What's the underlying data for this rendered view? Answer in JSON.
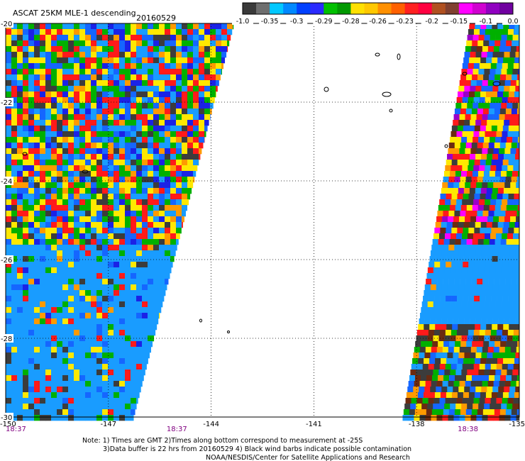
{
  "title": "ASCAT 25KM MLE-1 descending",
  "date": "20160529",
  "colorbar": {
    "labels": [
      "-1.0",
      "-0.35",
      "-0.3",
      "-0.29",
      "-0.28",
      "-0.26",
      "-0.23",
      "-0.2",
      "-0.15",
      "-0.1",
      "0.0"
    ],
    "colors": [
      "#3a3a3a",
      "#6e6e6e",
      "#00c8ff",
      "#0088ff",
      "#0040ff",
      "#2a2aff",
      "#00c000",
      "#009900",
      "#ffe000",
      "#ffc800",
      "#ff9000",
      "#ff6000",
      "#ff2020",
      "#ff0040",
      "#b05020",
      "#804030",
      "#ff00ff",
      "#d000d0",
      "#9000c0",
      "#7000a0"
    ]
  },
  "chart_data": {
    "type": "heatmap",
    "title": "ASCAT 25KM MLE-1 descending",
    "x_ticks": [
      -150,
      -147,
      -144,
      -141,
      -138,
      -135
    ],
    "x_tick_labels": [
      "-150",
      "-147",
      "-144",
      "-141",
      "-138",
      "-135"
    ],
    "y_ticks": [
      -20,
      -22,
      -24,
      -26,
      -28,
      -30
    ],
    "y_tick_labels": [
      "-20",
      "-22",
      "-24",
      "-26",
      "-28",
      "-30"
    ],
    "xlim": [
      -150,
      -135
    ],
    "ylim": [
      -30,
      -20
    ],
    "grid": true,
    "time_labels": [
      {
        "lon": -150,
        "text": "18:37"
      },
      {
        "lon": -145,
        "text": "18:37"
      },
      {
        "lon": -136.5,
        "text": "18:38"
      }
    ]
  },
  "footer": {
    "line1": "Note: 1) Times are GMT 2)Times along bottom correspond to measurement at -25S",
    "line2": "3)Data buffer is 22 hrs from 20160529 4) Black wind barbs indicate possible contamination",
    "line3": "NOAA/NESDIS/Center for Satellite Applications and Research"
  }
}
